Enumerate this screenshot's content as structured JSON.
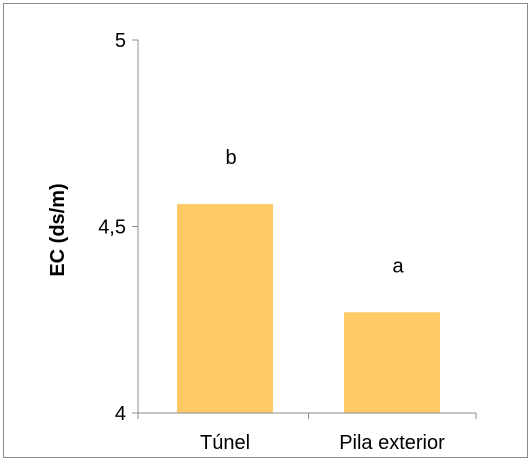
{
  "chart_data": {
    "type": "bar",
    "title": "",
    "xlabel": "",
    "ylabel": "EC (ds/m)",
    "categories": [
      "Túnel",
      "Pila exterior"
    ],
    "values": [
      4.56,
      4.27
    ],
    "data_labels": [
      "b",
      "a"
    ],
    "ylim": [
      4,
      5
    ],
    "yticks": [
      4,
      4.5,
      5
    ],
    "ytick_labels": [
      "4",
      "4,5",
      "5"
    ],
    "grid": false,
    "legend": "none",
    "colors": {
      "bar": "#FFC966",
      "axis": "#8C8C8C",
      "border": "#8C8C8C"
    }
  }
}
